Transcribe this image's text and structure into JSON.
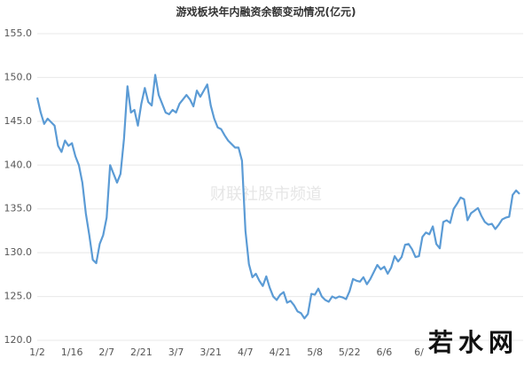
{
  "chart_data": {
    "type": "line",
    "title": "游戏板块年内融资余额变动情况(亿元)",
    "watermark": "财联社股市频道",
    "logo": "若水网",
    "categories": [
      "1/2",
      null,
      null,
      null,
      null,
      null,
      null,
      null,
      null,
      null,
      "1/16",
      null,
      null,
      null,
      null,
      null,
      null,
      null,
      null,
      null,
      "2/7",
      null,
      null,
      null,
      null,
      null,
      null,
      null,
      null,
      null,
      "2/21",
      null,
      null,
      null,
      null,
      null,
      null,
      null,
      null,
      null,
      "3/7",
      null,
      null,
      null,
      null,
      null,
      null,
      null,
      null,
      null,
      "3/21",
      null,
      null,
      null,
      null,
      null,
      null,
      null,
      null,
      null,
      "4/7",
      null,
      null,
      null,
      null,
      null,
      null,
      null,
      null,
      null,
      "4/21",
      null,
      null,
      null,
      null,
      null,
      null,
      null,
      null,
      null,
      "5/8",
      null,
      null,
      null,
      null,
      null,
      null,
      null,
      null,
      null,
      "5/22",
      null,
      null,
      null,
      null,
      null,
      null,
      null,
      null,
      null,
      "6/6",
      null,
      null,
      null,
      null,
      null,
      null,
      null,
      null,
      null,
      "6/",
      null,
      null,
      null,
      null,
      null,
      null,
      null,
      null,
      null,
      null,
      null,
      null,
      null,
      null,
      null,
      null,
      null,
      null,
      null,
      null,
      null,
      null,
      null,
      null,
      null,
      null,
      null,
      null,
      null
    ],
    "values": [
      147.7,
      146,
      144.7,
      145.3,
      144.9,
      144.5,
      142.2,
      141.5,
      142.8,
      142.2,
      142.5,
      141,
      140,
      138,
      134.5,
      132,
      129.2,
      128.8,
      131,
      132,
      134,
      140,
      139,
      138,
      139,
      143,
      149,
      146,
      146.3,
      144.5,
      147,
      148.8,
      147.2,
      146.8,
      150.3,
      148,
      147,
      146,
      145.8,
      146.3,
      146,
      147,
      147.5,
      148,
      147.5,
      146.7,
      148.5,
      147.8,
      148.5,
      149.2,
      146.8,
      145.3,
      144.3,
      144.1,
      143.4,
      142.8,
      142.4,
      142,
      142,
      140.5,
      132.5,
      128.7,
      127.2,
      127.6,
      126.8,
      126.2,
      127.3,
      126,
      125,
      124.6,
      125.2,
      125.5,
      124.3,
      124.5,
      124,
      123.3,
      123.1,
      122.5,
      123,
      125.3,
      125.2,
      125.9,
      125,
      124.6,
      124.4,
      125,
      124.8,
      125,
      124.9,
      124.7,
      125.6,
      127,
      126.8,
      126.7,
      127.2,
      126.4,
      127,
      127.8,
      128.6,
      128.1,
      128.4,
      127.6,
      128.3,
      129.6,
      129,
      129.5,
      130.9,
      131,
      130.4,
      129.5,
      129.6,
      131.8,
      132.3,
      132.1,
      133,
      131,
      130.5,
      133.5,
      133.7,
      133.4,
      135,
      135.6,
      136.3,
      136.1,
      133.7,
      134.5,
      134.8,
      135.1,
      134.2,
      133.5,
      133.2,
      133.3,
      132.7,
      133.2,
      133.8,
      134,
      134.1,
      136.6,
      137.1,
      136.7
    ],
    "color": "#5b9bd5",
    "ylim": [
      120,
      155
    ],
    "yticks": [
      {
        "value": 120,
        "label": "120.0"
      },
      {
        "value": 125,
        "label": "125.0"
      },
      {
        "value": 130,
        "label": "130.0"
      },
      {
        "value": 135,
        "label": "135.0"
      },
      {
        "value": 140,
        "label": "140.0"
      },
      {
        "value": 145,
        "label": "145.0"
      },
      {
        "value": 150,
        "label": "150.0"
      },
      {
        "value": 155,
        "label": "155.0"
      }
    ],
    "grid": true
  }
}
